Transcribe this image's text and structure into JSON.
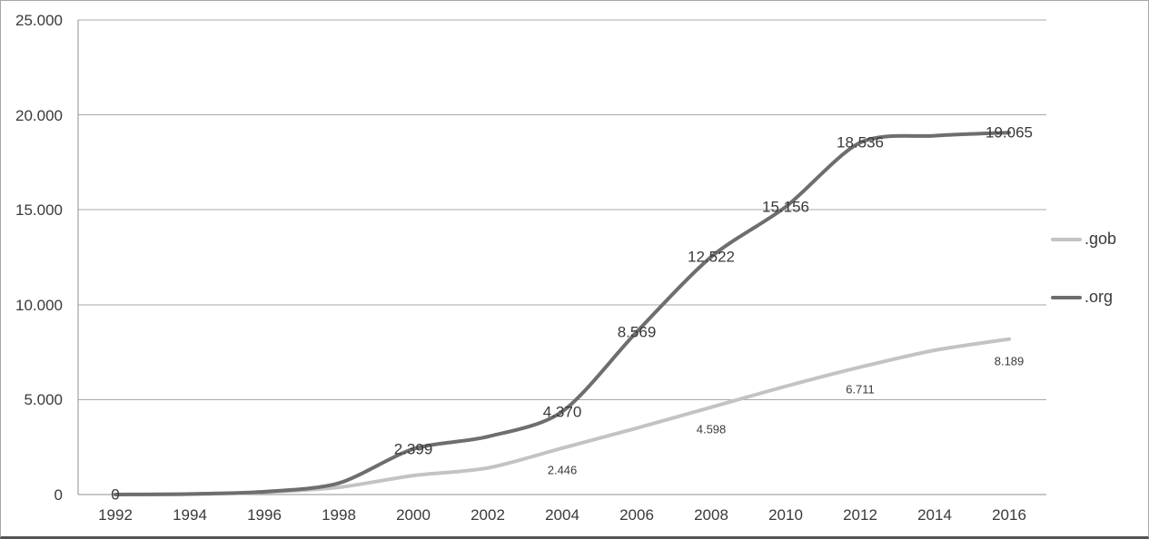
{
  "chart_data": {
    "type": "line",
    "smoothed": true,
    "categories": [
      "1992",
      "1994",
      "1996",
      "1998",
      "2000",
      "2002",
      "2004",
      "2006",
      "2008",
      "2010",
      "2012",
      "2014",
      "2016"
    ],
    "series": [
      {
        "name": ".gob",
        "color": "#c3c3c3",
        "values": [
          0,
          20,
          120,
          380,
          1000,
          1400,
          2446,
          3500,
          4598,
          5700,
          6711,
          7600,
          8189
        ],
        "data_labels": {
          "6": "2.446",
          "8": "4.598",
          "10": "6.711",
          "12": "8.189"
        },
        "label_position": "below"
      },
      {
        "name": ".org",
        "color": "#6e6e6e",
        "values": [
          0,
          30,
          150,
          600,
          2399,
          3050,
          4370,
          8569,
          12522,
          15156,
          18536,
          18900,
          19065
        ],
        "data_labels": {
          "0": "0",
          "4": "2.399",
          "6": "4.370",
          "7": "8.569",
          "8": "12.522",
          "9": "15.156",
          "10": "18.536",
          "12": "19.065"
        },
        "label_position": "center"
      }
    ],
    "y_axis": {
      "max": 25000,
      "tick_values": [
        0,
        5000,
        10000,
        15000,
        20000,
        25000
      ],
      "tick_labels": [
        "0",
        "5.000",
        "10.000",
        "15.000",
        "20.000",
        "25.000"
      ]
    },
    "xlabel": "",
    "ylabel": "",
    "title": "",
    "grid": true,
    "legend_position": "right",
    "colors": {
      "gridline": "#a8a8a8",
      "axis": "#8f8f8f",
      "text": "#3a3a3a",
      "background": "#ffffff"
    }
  }
}
